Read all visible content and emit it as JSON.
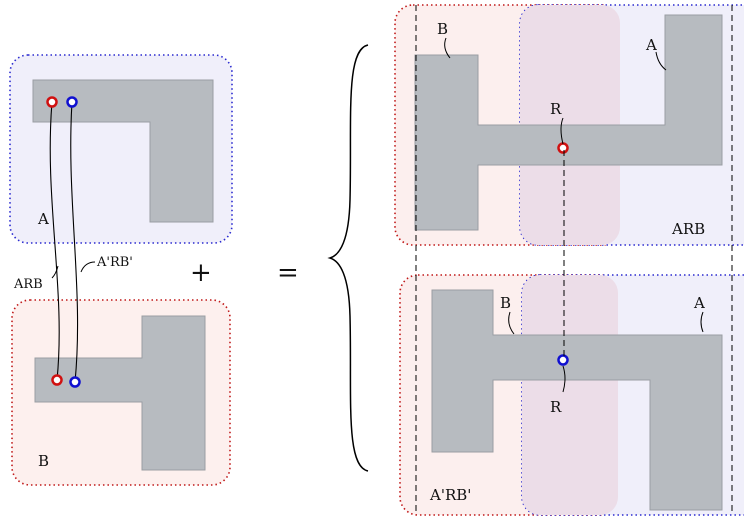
{
  "left_top": {
    "label": "A"
  },
  "left_bottom": {
    "label": "B"
  },
  "curves": {
    "arb": "ARB",
    "arpb": "A'RB'"
  },
  "plus": "+",
  "equals": "=",
  "right_top": {
    "piece_b": "B",
    "piece_a": "A",
    "point": "R",
    "label": "ARB"
  },
  "right_bottom": {
    "piece_b": "B",
    "piece_a": "A",
    "point": "R",
    "label": "A'RB'"
  }
}
